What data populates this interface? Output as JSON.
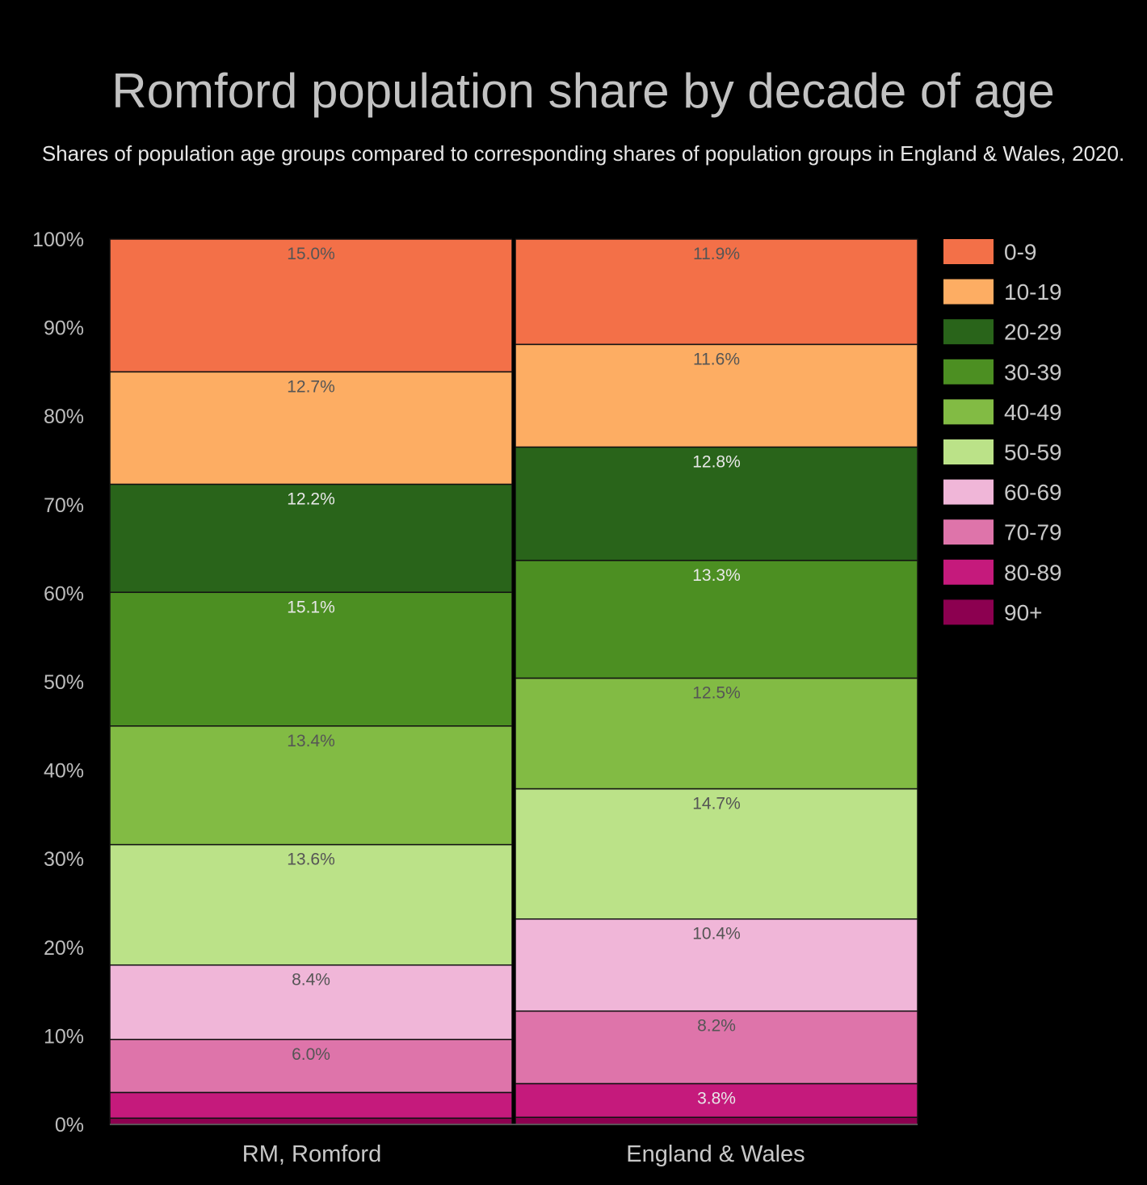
{
  "chart_data": {
    "type": "bar",
    "stacked": true,
    "normalized": true,
    "title": "Romford population share by decade of age",
    "subtitle": "Shares of population age groups compared to corresponding shares of population groups in England & Wales, 2020.",
    "xlabel": "",
    "ylabel": "",
    "ylim": [
      0,
      100
    ],
    "y_ticks": [
      "0%",
      "10%",
      "20%",
      "30%",
      "40%",
      "50%",
      "60%",
      "70%",
      "80%",
      "90%",
      "100%"
    ],
    "categories": [
      "RM, Romford",
      "England & Wales"
    ],
    "legend_position": "right",
    "series": [
      {
        "name": "0-9",
        "color": "#f37048",
        "values": [
          15.0,
          11.9
        ],
        "labels": [
          "15.0%",
          "11.9%"
        ]
      },
      {
        "name": "10-19",
        "color": "#fdad63",
        "values": [
          12.7,
          11.6
        ],
        "labels": [
          "12.7%",
          "11.6%"
        ]
      },
      {
        "name": "20-29",
        "color": "#29641a",
        "values": [
          12.2,
          12.8
        ],
        "labels": [
          "12.2%",
          "12.8%"
        ]
      },
      {
        "name": "30-39",
        "color": "#4c8f22",
        "values": [
          15.1,
          13.3
        ],
        "labels": [
          "15.1%",
          "13.3%"
        ]
      },
      {
        "name": "40-49",
        "color": "#82bb44",
        "values": [
          13.4,
          12.5
        ],
        "labels": [
          "13.4%",
          "12.5%"
        ]
      },
      {
        "name": "50-59",
        "color": "#bbe288",
        "values": [
          13.6,
          14.7
        ],
        "labels": [
          "13.6%",
          "14.7%"
        ]
      },
      {
        "name": "60-69",
        "color": "#f0b6d8",
        "values": [
          8.4,
          10.4
        ],
        "labels": [
          "8.4%",
          "10.4%"
        ]
      },
      {
        "name": "70-79",
        "color": "#de74aa",
        "values": [
          6.0,
          8.2
        ],
        "labels": [
          "6.0%",
          "8.2%"
        ]
      },
      {
        "name": "80-89",
        "color": "#c51a7c",
        "values": [
          2.9,
          3.8
        ],
        "labels": [
          "",
          "3.8%"
        ]
      },
      {
        "name": "90+",
        "color": "#8c0050",
        "values": [
          0.7,
          0.8
        ],
        "labels": [
          "",
          ""
        ]
      }
    ]
  }
}
